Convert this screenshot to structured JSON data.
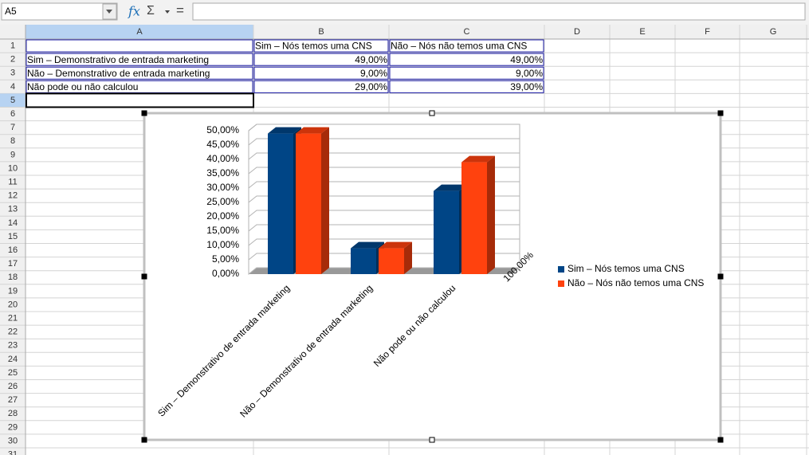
{
  "formula_bar": {
    "name_box": "A5",
    "buttons": [
      "fx",
      "Σ",
      "="
    ]
  },
  "columns": [
    "A",
    "B",
    "C",
    "D",
    "E",
    "F",
    "G"
  ],
  "rows": [
    1,
    2,
    3,
    4,
    5,
    6,
    7,
    8,
    9,
    10,
    11,
    12,
    13,
    14,
    15,
    16,
    17,
    18,
    19,
    20,
    21,
    22,
    23,
    24,
    25,
    26,
    27,
    28,
    29,
    30,
    31
  ],
  "table": {
    "header": [
      "Sim – Nós temos uma CNS",
      "Não – Nós não temos uma CNS"
    ],
    "rows": [
      {
        "label": "Sim – Demonstrativo de entrada marketing",
        "values": [
          "49,00%",
          "49,00%"
        ]
      },
      {
        "label": "Não – Demonstrativo de entrada marketing",
        "values": [
          "9,00%",
          "9,00%"
        ]
      },
      {
        "label": "Não pode ou não calculou",
        "values": [
          "29,00%",
          "39,00%"
        ]
      }
    ]
  },
  "chart_data": {
    "type": "bar",
    "categories": [
      "Sim – Demonstrativo de entrada marketing",
      "Não – Demonstrativo de entrada marketing",
      "Não pode ou não calculou"
    ],
    "series": [
      {
        "name": "Sim – Nós temos uma CNS",
        "color": "#004586",
        "values": [
          49,
          9,
          29
        ]
      },
      {
        "name": "Não – Nós não temos uma CNS",
        "color": "#ff420e",
        "values": [
          49,
          9,
          39
        ]
      }
    ],
    "ylim": [
      0,
      50
    ],
    "yticks": [
      {
        "value": 0,
        "label": "0,00%"
      },
      {
        "value": 5,
        "label": "5,00%"
      },
      {
        "value": 10,
        "label": "10,00%"
      },
      {
        "value": 15,
        "label": "15,00%"
      },
      {
        "value": 20,
        "label": "20,00%"
      },
      {
        "value": 25,
        "label": "25,00%"
      },
      {
        "value": 30,
        "label": "30,00%"
      },
      {
        "value": 35,
        "label": "35,00%"
      },
      {
        "value": 40,
        "label": "40,00%"
      },
      {
        "value": 45,
        "label": "45,00%"
      },
      {
        "value": 50,
        "label": "50,00%"
      }
    ],
    "annotation": "100,00%",
    "grid": true,
    "legend": "right"
  }
}
